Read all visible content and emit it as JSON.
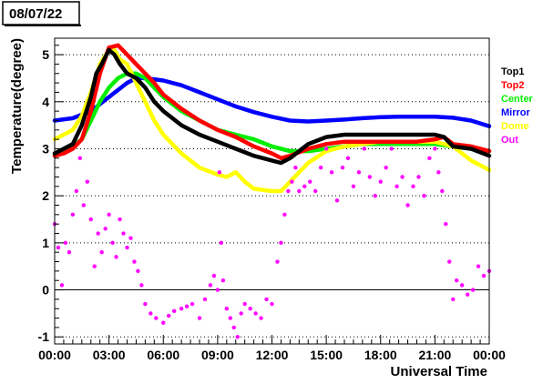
{
  "date_label": "08/07/22",
  "chart_data": {
    "type": "line",
    "xlabel": "Universal Time",
    "ylabel": "Temperature(degree)",
    "xlim": [
      0,
      24
    ],
    "ylim": [
      -1.15,
      5.35
    ],
    "x_ticks": [
      {
        "value": 0,
        "label": "00:00"
      },
      {
        "value": 3,
        "label": "03:00"
      },
      {
        "value": 6,
        "label": "06:00"
      },
      {
        "value": 9,
        "label": "09:00"
      },
      {
        "value": 12,
        "label": "12:00"
      },
      {
        "value": 15,
        "label": "15:00"
      },
      {
        "value": 18,
        "label": "18:00"
      },
      {
        "value": 21,
        "label": "21:00"
      },
      {
        "value": 24,
        "label": "00:00"
      }
    ],
    "y_ticks": [
      {
        "value": -1,
        "label": "-1"
      },
      {
        "value": 0,
        "label": "0"
      },
      {
        "value": 1,
        "label": "1"
      },
      {
        "value": 2,
        "label": "2"
      },
      {
        "value": 3,
        "label": "3"
      },
      {
        "value": 4,
        "label": "4"
      },
      {
        "value": 5,
        "label": "5"
      }
    ],
    "grid": {
      "horizontal_dotted": true,
      "zero_line": true
    },
    "legend_position": "right",
    "series": [
      {
        "name": "Top1",
        "color": "#000000",
        "style": "line",
        "x": [
          0,
          0.5,
          1,
          1.5,
          2,
          2.3,
          2.6,
          3,
          3.3,
          3.6,
          4,
          4.5,
          5,
          5.5,
          6,
          7,
          8,
          9,
          10,
          11,
          12,
          12.5,
          13,
          14,
          15,
          16,
          17,
          18,
          19,
          20,
          21,
          21.5,
          22,
          23,
          24
        ],
        "y": [
          2.9,
          3.0,
          3.1,
          3.5,
          4.1,
          4.6,
          4.8,
          5.1,
          5.0,
          4.8,
          4.6,
          4.5,
          4.3,
          4.0,
          3.8,
          3.5,
          3.3,
          3.15,
          3.0,
          2.85,
          2.75,
          2.7,
          2.8,
          3.1,
          3.25,
          3.3,
          3.3,
          3.3,
          3.3,
          3.3,
          3.3,
          3.25,
          3.05,
          3.0,
          2.85
        ]
      },
      {
        "name": "Top2",
        "color": "#ff0000",
        "style": "line",
        "x": [
          0,
          0.5,
          1,
          1.5,
          2,
          2.5,
          3,
          3.5,
          4,
          4.5,
          5,
          5.5,
          6,
          7,
          8,
          9,
          10,
          11,
          12,
          12.5,
          13,
          14,
          15,
          16,
          17,
          18,
          19,
          20,
          21,
          21.5,
          22,
          23,
          24
        ],
        "y": [
          2.85,
          2.9,
          3.0,
          3.2,
          3.8,
          4.6,
          5.15,
          5.2,
          5.0,
          4.8,
          4.6,
          4.4,
          4.15,
          3.85,
          3.6,
          3.4,
          3.25,
          3.05,
          2.9,
          2.8,
          2.85,
          3.0,
          3.1,
          3.15,
          3.15,
          3.15,
          3.15,
          3.15,
          3.2,
          3.25,
          3.1,
          3.05,
          2.95
        ]
      },
      {
        "name": "Center",
        "color": "#00ee00",
        "style": "line",
        "x": [
          0,
          0.5,
          1,
          1.5,
          2,
          2.5,
          3,
          3.5,
          4,
          4.5,
          5,
          5.5,
          6,
          7,
          8,
          9,
          10,
          11,
          12,
          13,
          14,
          15,
          16,
          17,
          18,
          19,
          20,
          21,
          22,
          23,
          24
        ],
        "y": [
          2.85,
          2.95,
          3.05,
          3.2,
          3.6,
          4.0,
          4.3,
          4.5,
          4.6,
          4.6,
          4.5,
          4.3,
          4.1,
          3.8,
          3.6,
          3.4,
          3.3,
          3.2,
          3.05,
          2.95,
          2.95,
          3.0,
          3.05,
          3.1,
          3.1,
          3.1,
          3.1,
          3.1,
          3.05,
          3.0,
          2.95
        ]
      },
      {
        "name": "Mirror",
        "color": "#0000ff",
        "style": "line",
        "x": [
          0,
          1,
          2,
          3,
          4,
          4.5,
          5,
          6,
          7,
          8,
          9,
          10,
          11,
          12,
          13,
          14,
          15,
          16,
          17,
          18,
          19,
          20,
          21,
          22,
          23,
          24
        ],
        "y": [
          3.6,
          3.65,
          3.8,
          4.1,
          4.4,
          4.5,
          4.5,
          4.45,
          4.35,
          4.2,
          4.05,
          3.9,
          3.78,
          3.68,
          3.6,
          3.58,
          3.6,
          3.62,
          3.65,
          3.67,
          3.68,
          3.68,
          3.68,
          3.66,
          3.6,
          3.48
        ]
      },
      {
        "name": "Dome",
        "color": "#ffff00",
        "style": "line",
        "x": [
          0,
          0.5,
          1,
          1.5,
          2,
          2.5,
          3,
          3.3,
          3.6,
          4,
          4.5,
          5,
          5.5,
          6,
          7,
          8,
          9,
          9.5,
          10,
          10.5,
          11,
          12,
          12.5,
          13,
          14,
          15,
          16,
          17,
          18,
          19,
          20,
          21,
          22,
          23,
          24
        ],
        "y": [
          3.2,
          3.3,
          3.4,
          3.7,
          4.2,
          4.8,
          5.1,
          5.1,
          4.9,
          4.8,
          4.4,
          4.0,
          3.6,
          3.3,
          2.9,
          2.6,
          2.45,
          2.4,
          2.5,
          2.3,
          2.15,
          2.1,
          2.1,
          2.3,
          2.7,
          2.95,
          3.05,
          3.1,
          3.15,
          3.15,
          3.15,
          3.15,
          3.05,
          2.75,
          2.55
        ]
      },
      {
        "name": "Out",
        "color": "#ff00ff",
        "style": "markers",
        "x": [
          0,
          0.2,
          0.4,
          0.6,
          0.8,
          1.0,
          1.2,
          1.4,
          1.6,
          1.8,
          2.0,
          2.2,
          2.4,
          2.6,
          2.8,
          3.0,
          3.2,
          3.4,
          3.6,
          3.8,
          4.0,
          4.2,
          4.4,
          4.6,
          4.8,
          5.0,
          5.3,
          5.6,
          6.0,
          6.3,
          6.6,
          7.0,
          7.3,
          7.6,
          8.0,
          8.3,
          8.6,
          8.8,
          9.0,
          9.1,
          9.2,
          9.3,
          9.5,
          9.7,
          9.9,
          10.1,
          10.3,
          10.5,
          10.8,
          11.1,
          11.4,
          11.7,
          12.0,
          12.3,
          12.5,
          12.7,
          12.9,
          13.1,
          13.3,
          13.5,
          13.8,
          14.1,
          14.4,
          14.7,
          15.0,
          15.3,
          15.6,
          15.9,
          16.2,
          16.5,
          16.8,
          17.1,
          17.4,
          17.7,
          18.0,
          18.3,
          18.6,
          18.9,
          19.2,
          19.5,
          19.8,
          20.1,
          20.4,
          20.7,
          21.0,
          21.2,
          21.4,
          21.6,
          21.8,
          22.0,
          22.2,
          22.5,
          22.8,
          23.1,
          23.4,
          23.7,
          24.0
        ],
        "y": [
          1.4,
          0.9,
          0.1,
          1.0,
          0.8,
          1.6,
          2.1,
          2.8,
          1.8,
          2.3,
          1.5,
          0.5,
          1.2,
          0.8,
          1.3,
          1.6,
          1.0,
          0.7,
          1.5,
          1.2,
          0.9,
          1.1,
          0.6,
          0.4,
          0.1,
          -0.3,
          -0.5,
          -0.6,
          -0.7,
          -0.55,
          -0.45,
          -0.4,
          -0.35,
          -0.3,
          -0.6,
          -0.2,
          0.1,
          0.3,
          0.0,
          2.5,
          1.0,
          0.2,
          -0.4,
          -0.6,
          -0.8,
          -1.0,
          -0.5,
          -0.3,
          -0.4,
          -0.5,
          -0.6,
          -0.2,
          -0.3,
          0.6,
          1.0,
          1.6,
          2.1,
          2.3,
          2.6,
          2.1,
          2.2,
          2.3,
          2.1,
          2.6,
          3.0,
          2.5,
          1.9,
          2.6,
          2.8,
          2.2,
          2.5,
          3.0,
          2.4,
          2.0,
          2.3,
          2.6,
          3.0,
          2.2,
          2.4,
          1.8,
          2.2,
          2.4,
          2.0,
          2.8,
          3.0,
          2.5,
          2.1,
          1.4,
          0.6,
          -0.2,
          0.2,
          0.1,
          -0.1,
          0.0,
          0.5,
          0.3,
          0.4
        ]
      }
    ]
  }
}
